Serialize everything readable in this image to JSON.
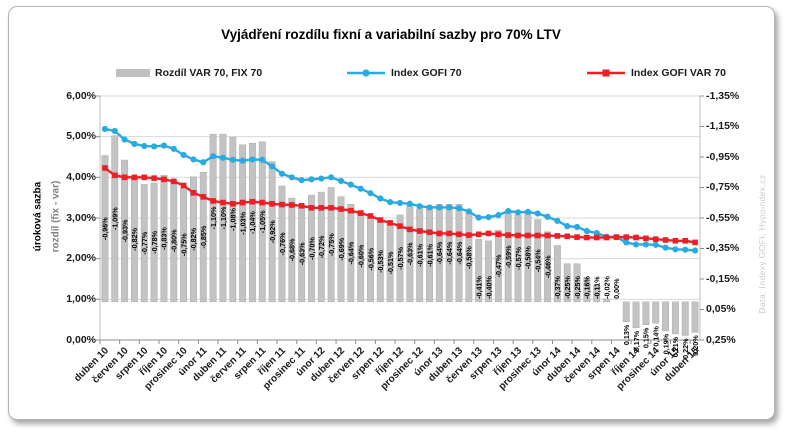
{
  "title": "Vyjádření rozdílu fixní a variabilní sazby pro 70% LTV",
  "legend": {
    "items": [
      {
        "label": "Rozdíl VAR 70, FIX 70",
        "marker": "bar",
        "color": "#bfbfbf"
      },
      {
        "label": "Index GOFI 70",
        "marker": "line-circle",
        "color": "#29abe2"
      },
      {
        "label": "Index GOFI VAR 70",
        "marker": "line-square",
        "color": "#ec1f27"
      }
    ]
  },
  "watermark": "Data: Indexy GOFI, Hypoindex.cz",
  "axes": {
    "left": {
      "title_outer": "úroková sazba",
      "title_inner": "rozdíl (fix - var)",
      "ticks": [
        "6,00%",
        "5,00%",
        "4,00%",
        "3,00%",
        "2,00%",
        "1,00%",
        "0,00%"
      ]
    },
    "right": {
      "ticks": [
        "-1,35%",
        "-1,15%",
        "-0,95%",
        "-0,75%",
        "-0,55%",
        "-0,35%",
        "-0,15%",
        "0,05%",
        "0,25%"
      ]
    }
  },
  "chart_data": {
    "type": "bar",
    "subtype": "combo-bar-and-lines",
    "title": "Vyjádření rozdílu fixní a variabilní sazby pro 70% LTV",
    "grid": true,
    "legend_position": "top",
    "left_axis_range": [
      0,
      6
    ],
    "right_axis_range": [
      0.25,
      -1.35
    ],
    "tick_every": 2,
    "x_tick_labels": [
      "duben 10",
      "červen 10",
      "srpen 10",
      "říjen 10",
      "prosinec 10",
      "únor 11",
      "duben 11",
      "červen 11",
      "srpen 11",
      "říjen 11",
      "prosinec 11",
      "únor 12",
      "duben 12",
      "červen 12",
      "srpen 12",
      "říjen 12",
      "prosinec 12",
      "únor 13",
      "duben 13",
      "červen 13",
      "srpen 13",
      "říjen 13",
      "prosinec 13",
      "únor 14",
      "duben 14",
      "červen 14",
      "srpen 14",
      "říjen 14",
      "prosinec 14",
      "únor 15",
      "duben 15"
    ],
    "bars": {
      "name": "Rozdíl VAR 70, FIX 70",
      "axis": "right",
      "color": "#c3c3c3",
      "values": [
        -0.96,
        -1.09,
        -0.93,
        -0.82,
        -0.77,
        -0.78,
        -0.83,
        -0.8,
        -0.75,
        -0.82,
        -0.85,
        -1.1,
        -1.1,
        -1.08,
        -1.03,
        -1.04,
        -1.05,
        -0.92,
        -0.76,
        -0.68,
        -0.63,
        -0.7,
        -0.72,
        -0.75,
        -0.69,
        -0.64,
        -0.6,
        -0.56,
        -0.53,
        -0.51,
        -0.57,
        -0.63,
        -0.61,
        -0.61,
        -0.64,
        -0.64,
        -0.64,
        -0.58,
        -0.41,
        -0.4,
        -0.47,
        -0.59,
        -0.57,
        -0.58,
        -0.54,
        -0.46,
        -0.37,
        -0.25,
        -0.25,
        -0.16,
        -0.11,
        -0.02,
        0.0,
        0.13,
        0.17,
        0.15,
        0.14,
        0.19,
        0.21,
        0.22,
        0.2
      ],
      "labels": [
        "-0,96%",
        "-1,09%",
        "-0,93%",
        "-0,82%",
        "-0,77%",
        "-0,78%",
        "-0,83%",
        "-0,80%",
        "-0,75%",
        "-0,82%",
        "-0,85%",
        "-1,10%",
        "-1,10%",
        "-1,08%",
        "-1,03%",
        "-1,04%",
        "-1,05%",
        "-0,92%",
        "-0,76%",
        "-0,68%",
        "-0,63%",
        "-0,70%",
        "-0,72%",
        "-0,75%",
        "-0,69%",
        "-0,64%",
        "-0,60%",
        "-0,56%",
        "-0,53%",
        "-0,51%",
        "-0,57%",
        "-0,63%",
        "-0,61%",
        "-0,61%",
        "-0,64%",
        "-0,64%",
        "-0,64%",
        "-0,58%",
        "-0,41%",
        "-0,40%",
        "-0,47%",
        "-0,59%",
        "-0,57%",
        "-0,58%",
        "-0,54%",
        "-0,46%",
        "-0,37%",
        "-0,25%",
        "-0,25%",
        "-0,16%",
        "-0,11%",
        "-0,02%",
        "0,00%",
        "0,13%",
        "0,17%",
        "0,15%",
        "0,14%",
        "0,19%",
        "0,21%",
        "0,22%",
        "0,20%"
      ]
    },
    "series": [
      {
        "name": "Index GOFI 70",
        "axis": "left",
        "marker": "circle",
        "color": "#29abe2",
        "values": [
          5.19,
          5.14,
          4.93,
          4.82,
          4.77,
          4.76,
          4.78,
          4.7,
          4.55,
          4.44,
          4.37,
          4.52,
          4.48,
          4.43,
          4.41,
          4.44,
          4.43,
          4.27,
          4.09,
          4.0,
          3.93,
          3.95,
          3.97,
          4.0,
          3.91,
          3.82,
          3.72,
          3.61,
          3.48,
          3.39,
          3.37,
          3.35,
          3.29,
          3.26,
          3.26,
          3.26,
          3.24,
          3.16,
          3.01,
          3.02,
          3.07,
          3.17,
          3.14,
          3.15,
          3.11,
          3.03,
          2.93,
          2.8,
          2.78,
          2.68,
          2.63,
          2.54,
          2.53,
          2.4,
          2.35,
          2.35,
          2.34,
          2.27,
          2.23,
          2.22,
          2.2
        ]
      },
      {
        "name": "Index GOFI VAR 70",
        "axis": "left",
        "marker": "square",
        "color": "#ec1f27",
        "values": [
          4.23,
          4.05,
          4.0,
          4.0,
          4.0,
          3.98,
          3.95,
          3.9,
          3.8,
          3.62,
          3.52,
          3.42,
          3.38,
          3.35,
          3.38,
          3.4,
          3.38,
          3.35,
          3.33,
          3.32,
          3.3,
          3.25,
          3.25,
          3.25,
          3.22,
          3.18,
          3.12,
          3.05,
          2.95,
          2.88,
          2.8,
          2.72,
          2.68,
          2.65,
          2.62,
          2.62,
          2.6,
          2.58,
          2.6,
          2.62,
          2.6,
          2.58,
          2.57,
          2.57,
          2.57,
          2.57,
          2.56,
          2.55,
          2.53,
          2.52,
          2.52,
          2.52,
          2.53,
          2.53,
          2.52,
          2.5,
          2.48,
          2.46,
          2.44,
          2.44,
          2.4
        ]
      }
    ]
  }
}
